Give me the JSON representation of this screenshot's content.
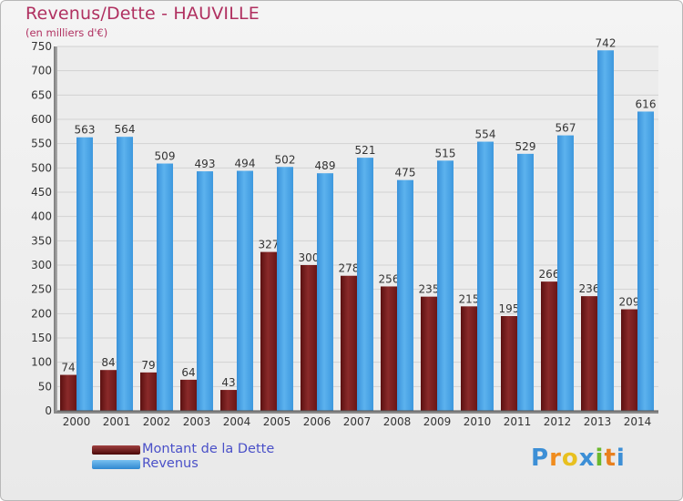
{
  "chart_data": {
    "type": "bar",
    "title": "Revenus/Dette - HAUVILLE",
    "subtitle": "(en milliers d'€)",
    "categories": [
      "2000",
      "2001",
      "2002",
      "2003",
      "2004",
      "2005",
      "2006",
      "2007",
      "2008",
      "2009",
      "2010",
      "2011",
      "2012",
      "2013",
      "2014"
    ],
    "series": [
      {
        "name": "Montant de la Dette",
        "color": "#7a1e1e",
        "values": [
          74,
          84,
          79,
          64,
          43,
          327,
          300,
          278,
          256,
          235,
          215,
          195,
          266,
          236,
          209
        ]
      },
      {
        "name": "Revenus",
        "color": "#4da6e8",
        "values": [
          563,
          564,
          509,
          493,
          494,
          502,
          489,
          521,
          475,
          515,
          554,
          529,
          567,
          742,
          616
        ]
      }
    ],
    "ylim": [
      0,
      750
    ],
    "yticks": [
      0,
      50,
      100,
      150,
      200,
      250,
      300,
      350,
      400,
      450,
      500,
      550,
      600,
      650,
      700,
      750
    ],
    "grid": true,
    "legend_position": "bottom-left"
  },
  "logo": {
    "letters": [
      "P",
      "r",
      "o",
      "x",
      "i",
      "t",
      "i"
    ],
    "colors": [
      "#3c8fd6",
      "#f08c1e",
      "#e8c020",
      "#3c8fd6",
      "#6ab82c",
      "#e8801e",
      "#3c8fd6"
    ]
  }
}
